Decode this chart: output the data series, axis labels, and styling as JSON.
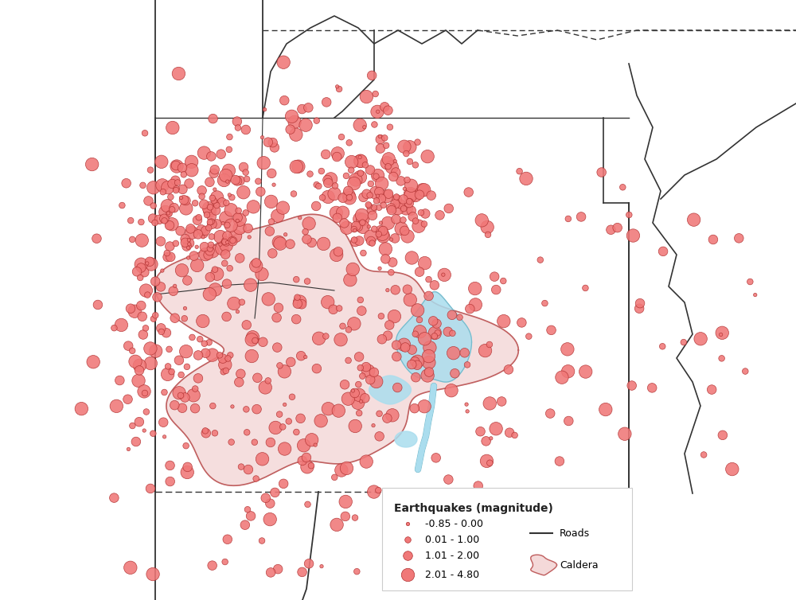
{
  "map_background": "#ffffff",
  "dot_color": "#f07878",
  "dot_edge_color": "#b03030",
  "caldera_fill": "#f2d0d0",
  "caldera_edge": "#c06060",
  "water_fill": "#aaddee",
  "water_edge": "#77bbcc",
  "road_color": "#333333",
  "border_color": "#333333",
  "legend_labels": [
    "-0.85 - 0.00",
    "0.01 - 1.00",
    "1.01 - 2.00",
    "2.01 - 4.80"
  ],
  "legend_sizes_pt": [
    10,
    30,
    70,
    140
  ],
  "legend_title": "Earthquakes (magnitude)",
  "xlim": [
    0,
    100
  ],
  "ylim": [
    0,
    100
  ],
  "seed": 42
}
